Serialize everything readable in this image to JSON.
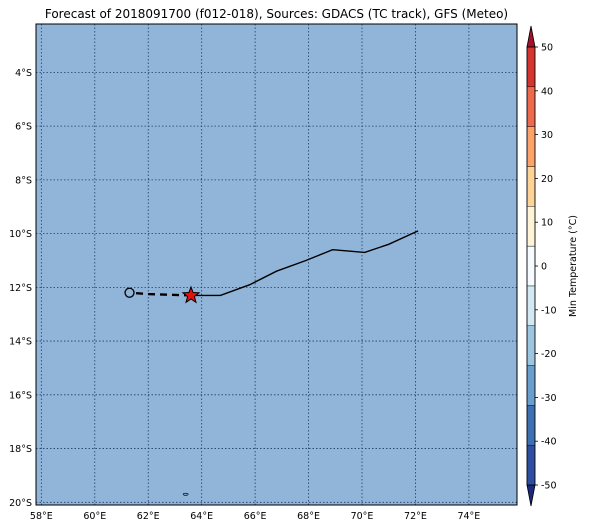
{
  "title": "Forecast of 2018091700 (f012-018), Sources: GDACS (TC track), GFS (Meteo)",
  "map": {
    "lon_range": [
      57.8,
      75.8
    ],
    "lat_range": [
      -20.1,
      -2.2
    ],
    "ocean_color": "#91b5d9",
    "grid_color": "#1f3a6a",
    "lon_ticks": [
      {
        "value": 58,
        "label": "58°E"
      },
      {
        "value": 60,
        "label": "60°E"
      },
      {
        "value": 62,
        "label": "62°E"
      },
      {
        "value": 64,
        "label": "64°E"
      },
      {
        "value": 66,
        "label": "66°E"
      },
      {
        "value": 68,
        "label": "68°E"
      },
      {
        "value": 70,
        "label": "70°E"
      },
      {
        "value": 72,
        "label": "72°E"
      },
      {
        "value": 74,
        "label": "74°E"
      }
    ],
    "lat_ticks": [
      {
        "value": -4,
        "label": "4°S"
      },
      {
        "value": -6,
        "label": "6°S"
      },
      {
        "value": -8,
        "label": "8°S"
      },
      {
        "value": -10,
        "label": "10°S"
      },
      {
        "value": -12,
        "label": "12°S"
      },
      {
        "value": -14,
        "label": "14°S"
      },
      {
        "value": -16,
        "label": "16°S"
      },
      {
        "value": -18,
        "label": "18°S"
      },
      {
        "value": -20,
        "label": "20°S"
      }
    ],
    "past_track": [
      [
        72.1,
        -9.9
      ],
      [
        71.0,
        -10.4
      ],
      [
        70.1,
        -10.7
      ],
      [
        68.9,
        -10.6
      ],
      [
        67.9,
        -11.0
      ],
      [
        66.8,
        -11.4
      ],
      [
        65.8,
        -11.9
      ],
      [
        64.7,
        -12.3
      ],
      [
        63.4,
        -12.3
      ]
    ],
    "forecast_track": [
      [
        63.6,
        -12.3
      ],
      [
        62.0,
        -12.25
      ],
      [
        61.3,
        -12.2
      ]
    ],
    "current_position": {
      "lon": 63.6,
      "lat": -12.3,
      "marker": "star",
      "color": "#e8100e"
    },
    "forecast_position": {
      "lon": 61.3,
      "lat": -12.2,
      "marker": "circle"
    },
    "island": {
      "lon": 63.4,
      "lat": -19.7
    }
  },
  "colorbar": {
    "label": "Min Temperature (°C)",
    "ticks": [
      "-50",
      "-40",
      "-30",
      "-20",
      "-10",
      "0",
      "10",
      "20",
      "30",
      "40",
      "50"
    ],
    "colors": [
      "#1b2a7a",
      "#2e4fa0",
      "#3d6fb1",
      "#6a9fcd",
      "#9cc6e0",
      "#d2e9f2",
      "#f5fbff",
      "#fff5d6",
      "#fed398",
      "#fca36a",
      "#ee6a4c",
      "#d6342e",
      "#a3102a"
    ]
  }
}
